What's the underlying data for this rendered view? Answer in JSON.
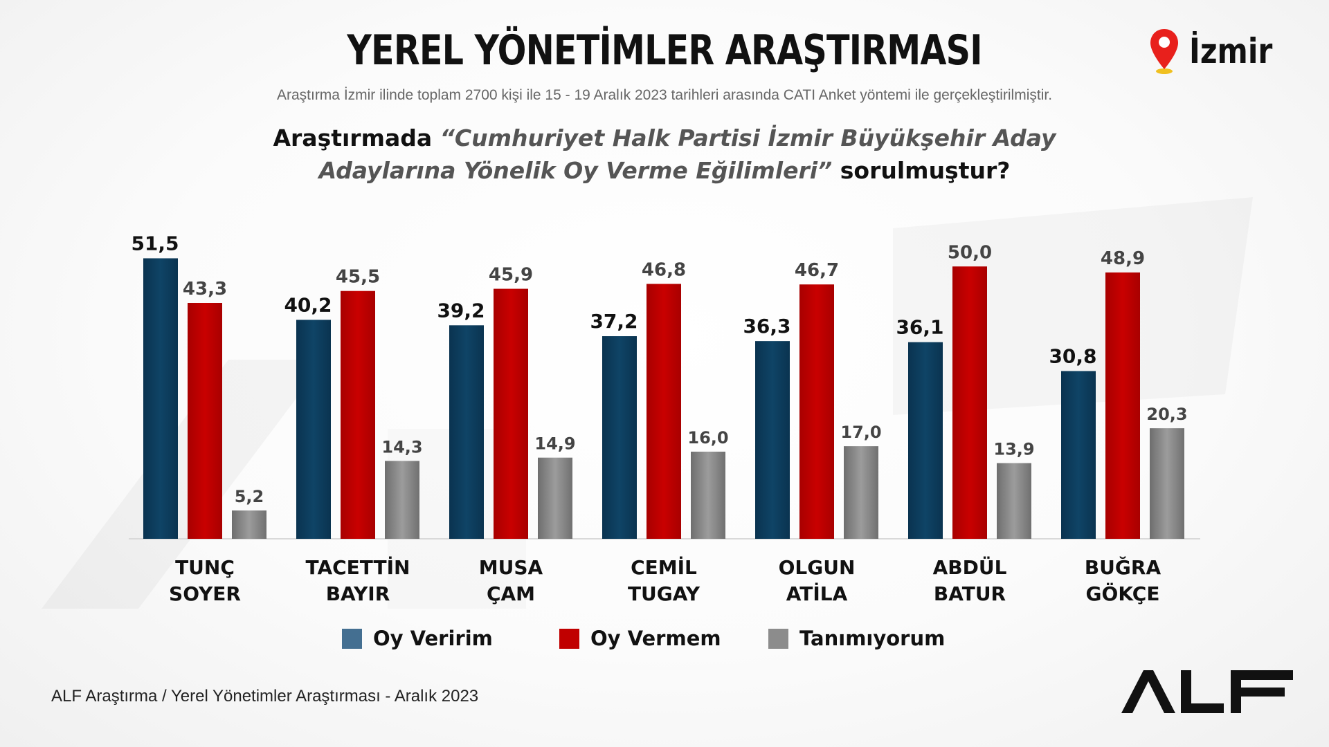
{
  "header": {
    "title": "YEREL YÖNETİMLER ARAŞTIRMASI",
    "subtitle": "Araştırma İzmir ilinde toplam 2700 kişi ile 15 - 19  Aralık 2023 tarihleri arasında CATI Anket yöntemi ile gerçekleştirilmiştir.",
    "city": "İzmir",
    "city_icon": "map-pin-icon"
  },
  "question": {
    "prefix": "Araştırmada ",
    "italic_line1": "“Cumhuriyet Halk Partisi İzmir Büyükşehir Aday",
    "italic_line2": "Adaylarına Yönelik Oy Verme Eğilimleri”",
    "suffix": " sorulmuştur?"
  },
  "chart_data": {
    "type": "bar",
    "categories": [
      [
        "TUNÇ",
        "SOYER"
      ],
      [
        "TACETTİN",
        "BAYIR"
      ],
      [
        "MUSA",
        "ÇAM"
      ],
      [
        "CEMİL",
        "TUGAY"
      ],
      [
        "OLGUN",
        "ATİLA"
      ],
      [
        "ABDÜL",
        "BATUR"
      ],
      [
        "BUĞRA",
        "GÖKÇE"
      ]
    ],
    "series": [
      {
        "name": "Oy Veririm",
        "color": "#0d3d5c",
        "values": [
          51.5,
          40.2,
          39.2,
          37.2,
          36.3,
          36.1,
          30.8
        ],
        "labels": [
          "51,5",
          "40,2",
          "39,2",
          "37,2",
          "36,3",
          "36,1",
          "30,8"
        ]
      },
      {
        "name": "Oy Vermem",
        "color": "#c00000",
        "values": [
          43.3,
          45.5,
          45.9,
          46.8,
          46.7,
          50.0,
          48.9
        ],
        "labels": [
          "43,3",
          "45,5",
          "45,9",
          "46,8",
          "46,7",
          "50,0",
          "48,9"
        ]
      },
      {
        "name": "Tanımıyorum",
        "color": "#8c8c8c",
        "values": [
          5.2,
          14.3,
          14.9,
          16.0,
          17.0,
          13.9,
          20.3
        ],
        "labels": [
          "5,2",
          "14,3",
          "14,9",
          "16,0",
          "17,0",
          "13,9",
          "20,3"
        ]
      }
    ],
    "ylim": [
      0,
      55
    ],
    "grid": false,
    "legend_position": "bottom"
  },
  "legend": {
    "items": [
      {
        "label": "Oy Veririm",
        "color": "#446f91"
      },
      {
        "label": "Oy Vermem",
        "color": "#c00000"
      },
      {
        "label": "Tanımıyorum",
        "color": "#8c8c8c"
      }
    ]
  },
  "footer": {
    "source": "ALF Araştırma / Yerel Yönetimler Araştırması - Aralık 2023",
    "logo_text": "ALF"
  }
}
